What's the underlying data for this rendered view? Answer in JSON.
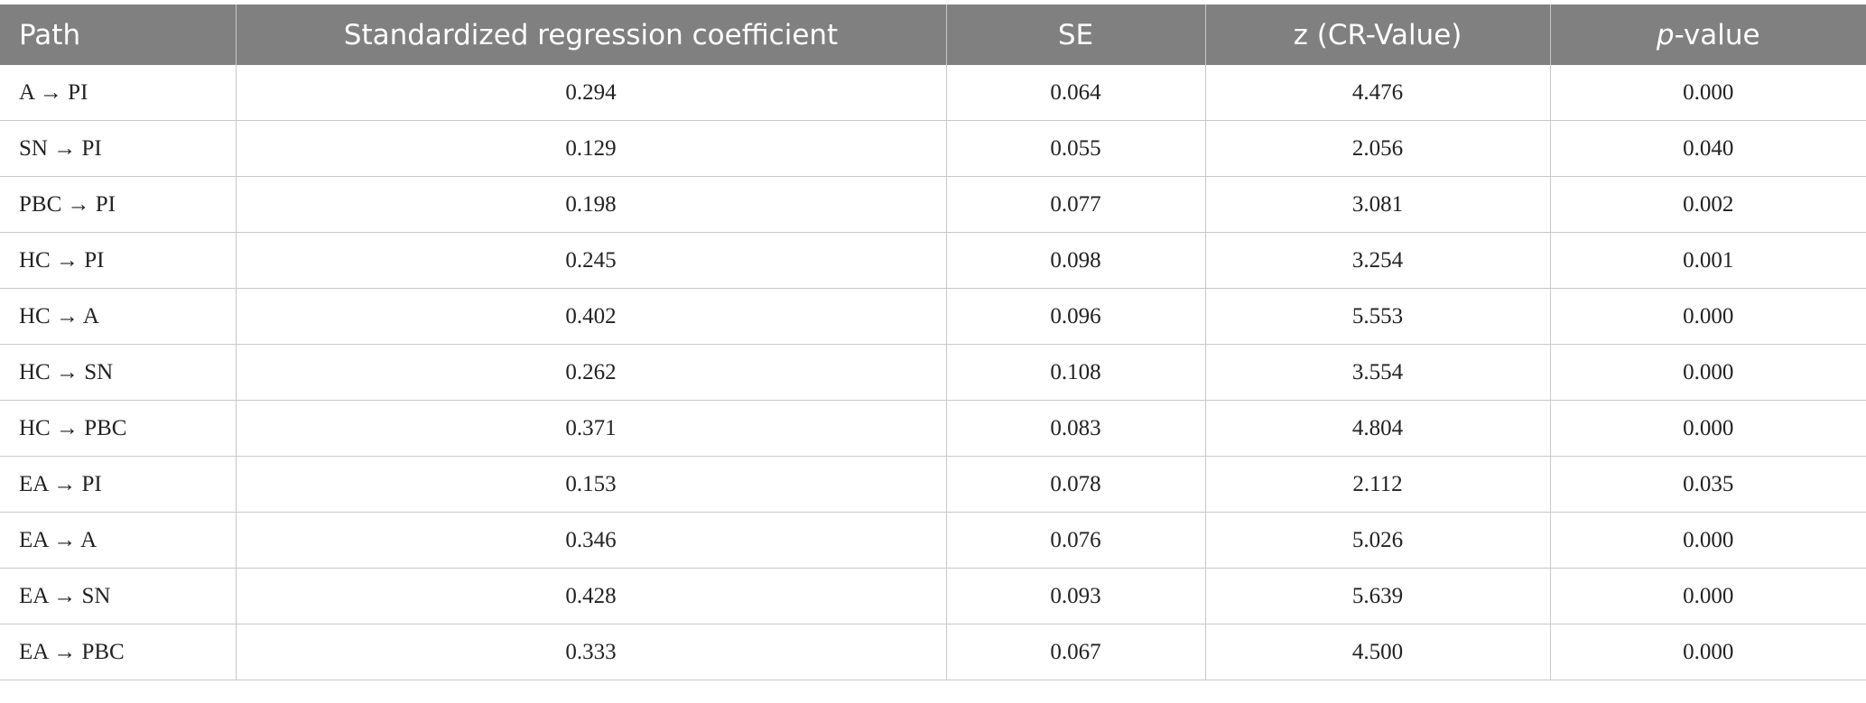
{
  "table": {
    "headers": [
      "Path",
      "Standardized regression coefficient",
      "SE",
      "z (CR-Value)",
      [
        "p",
        "-value"
      ]
    ],
    "rows": [
      [
        "A → PI",
        "0.294",
        "0.064",
        "4.476",
        "0.000"
      ],
      [
        "SN → PI",
        "0.129",
        "0.055",
        "2.056",
        "0.040"
      ],
      [
        "PBC → PI",
        "0.198",
        "0.077",
        "3.081",
        "0.002"
      ],
      [
        "HC → PI",
        "0.245",
        "0.098",
        "3.254",
        "0.001"
      ],
      [
        "HC → A",
        "0.402",
        "0.096",
        "5.553",
        "0.000"
      ],
      [
        "HC → SN",
        "0.262",
        "0.108",
        "3.554",
        "0.000"
      ],
      [
        "HC → PBC",
        "0.371",
        "0.083",
        "4.804",
        "0.000"
      ],
      [
        "EA → PI",
        "0.153",
        "0.078",
        "2.112",
        "0.035"
      ],
      [
        "EA → A",
        "0.346",
        "0.076",
        "5.026",
        "0.000"
      ],
      [
        "EA → SN",
        "0.428",
        "0.093",
        "5.639",
        "0.000"
      ],
      [
        "EA → PBC",
        "0.333",
        "0.067",
        "4.500",
        "0.000"
      ]
    ]
  }
}
